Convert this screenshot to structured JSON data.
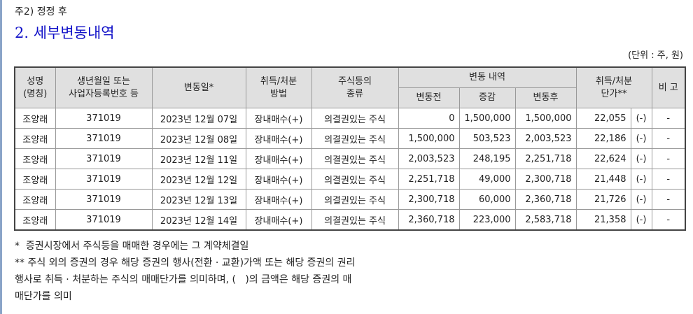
{
  "note": "주2) 정정 후",
  "title": "2. 세부변동내역",
  "unit": "(단위 : 주, 원)",
  "headers": {
    "name": "성명\n(명칭)",
    "birth": "생년월일 또는\n사업자등록번호 등",
    "date": "변동일*",
    "method": "취득/처분\n방법",
    "kind": "주식등의\n종류",
    "change": "변동 내역",
    "before": "변동전",
    "delta": "증감",
    "after": "변동후",
    "price": "취득/처분\n단가**",
    "remark": "비 고"
  },
  "rows": [
    [
      "조양래",
      "371019",
      "2023년 12월 07일",
      "장내매수(+)",
      "의결권있는 주식",
      "0",
      "1,500,000",
      "1,500,000",
      "22,055",
      "(-)",
      "-"
    ],
    [
      "조양래",
      "371019",
      "2023년 12월 08일",
      "장내매수(+)",
      "의결권있는 주식",
      "1,500,000",
      "503,523",
      "2,003,523",
      "22,186",
      "(-)",
      "-"
    ],
    [
      "조양래",
      "371019",
      "2023년 12월 11일",
      "장내매수(+)",
      "의결권있는 주식",
      "2,003,523",
      "248,195",
      "2,251,718",
      "22,624",
      "(-)",
      "-"
    ],
    [
      "조양래",
      "371019",
      "2023년 12월 12일",
      "장내매수(+)",
      "의결권있는 주식",
      "2,251,718",
      "49,000",
      "2,300,718",
      "21,448",
      "(-)",
      "-"
    ],
    [
      "조양래",
      "371019",
      "2023년 12월 13일",
      "장내매수(+)",
      "의결권있는 주식",
      "2,300,718",
      "60,000",
      "2,360,718",
      "21,726",
      "(-)",
      "-"
    ],
    [
      "조양래",
      "371019",
      "2023년 12월 14일",
      "장내매수(+)",
      "의결권있는 주식",
      "2,360,718",
      "223,000",
      "2,583,718",
      "21,358",
      "(-)",
      "-"
    ]
  ],
  "footnotes": [
    "*  증권시장에서 주식등을 매매한 경우에는 그 계약체결일",
    "** 주식 외의 증권의 경우 해당 증권의 행사(전환 · 교환)가액 또는 해당 증권의 권리",
    "행사로 취득 · 처분하는 주식의 매매단가를 의미하며, (   )의 금액은 해당 증권의 매",
    "매단가를 의미"
  ]
}
